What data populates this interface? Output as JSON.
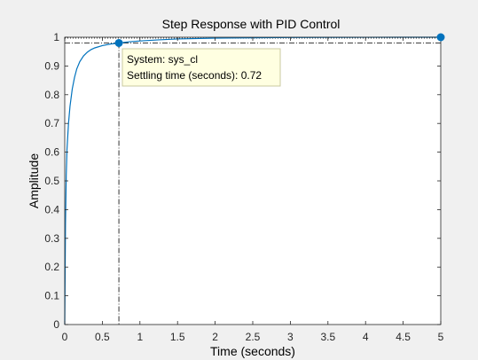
{
  "colors": {
    "figure_background": "#f0f0f0",
    "axes_background": "#ffffff",
    "axes_frame": "#262626",
    "grid_text": "#262626",
    "line": "#0072bd",
    "marker": "#0072bd",
    "reference_lines": "#000000",
    "tooltip_background": "#ffffe1",
    "tooltip_border": "#c8c8a0"
  },
  "chart_data": {
    "type": "line",
    "title": "Step Response with PID Control",
    "xlabel": "Time (seconds)",
    "ylabel": "Amplitude",
    "xlim": [
      0,
      5
    ],
    "ylim": [
      0,
      1
    ],
    "xticks": [
      0,
      0.5,
      1,
      1.5,
      2,
      2.5,
      3,
      3.5,
      4,
      4.5,
      5
    ],
    "xtick_labels": [
      "0",
      "0.5",
      "1",
      "1.5",
      "2",
      "2.5",
      "3",
      "3.5",
      "4",
      "4.5",
      "5"
    ],
    "yticks": [
      0,
      0.1,
      0.2,
      0.3,
      0.4,
      0.5,
      0.6,
      0.7,
      0.8,
      0.9,
      1
    ],
    "ytick_labels": [
      "0",
      "0.1",
      "0.2",
      "0.3",
      "0.4",
      "0.5",
      "0.6",
      "0.7",
      "0.8",
      "0.9",
      "1"
    ],
    "grid": false,
    "series": [
      {
        "x": [
          0,
          0.01,
          0.02,
          0.03,
          0.05,
          0.07,
          0.1,
          0.13,
          0.16,
          0.2,
          0.25,
          0.3,
          0.35,
          0.4,
          0.5,
          0.6,
          0.72,
          0.85,
          1.0,
          1.25,
          1.5,
          2.0,
          2.5,
          3.0,
          3.5,
          4.0,
          4.5,
          5.0
        ],
        "y": [
          0,
          0.35,
          0.52,
          0.61,
          0.7,
          0.76,
          0.82,
          0.86,
          0.89,
          0.915,
          0.935,
          0.948,
          0.957,
          0.963,
          0.971,
          0.976,
          0.98,
          0.984,
          0.987,
          0.991,
          0.994,
          0.997,
          0.998,
          0.999,
          0.9995,
          0.9998,
          0.9999,
          1.0
        ]
      }
    ],
    "reference_lines": {
      "settling_band_y": 0.98,
      "final_value_y": 1.0,
      "settling_time_x": 0.72
    },
    "markers": [
      {
        "x": 0.72,
        "y": 0.98
      },
      {
        "x": 5.0,
        "y": 1.0
      }
    ],
    "tooltip": {
      "line1": "System: sys_cl",
      "line2": "Settling time (seconds): 0.72"
    }
  }
}
